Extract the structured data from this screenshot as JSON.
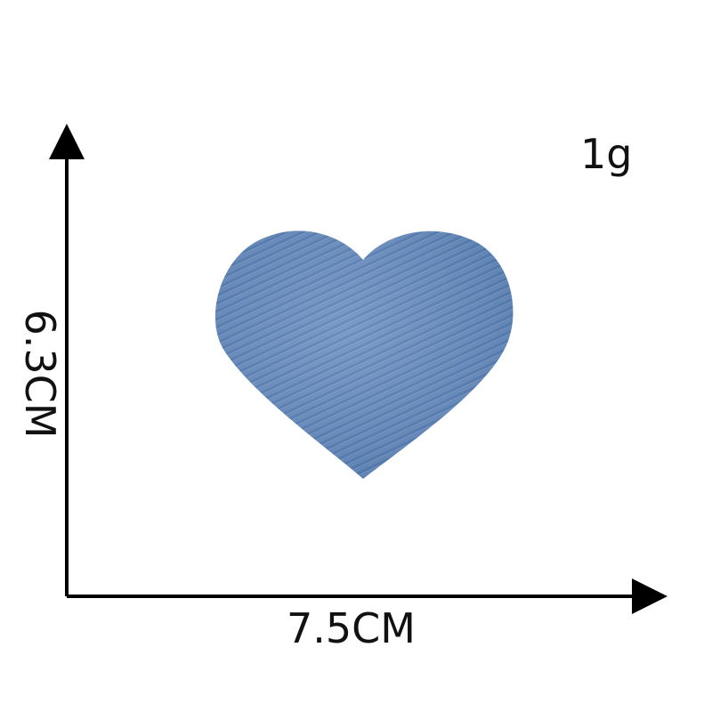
{
  "product": {
    "weight": "1g",
    "width_dimension": "7.5CM",
    "height_dimension": "6.3CM",
    "shape": "heart-patch",
    "colors": {
      "denim_base": "#5f86bb",
      "denim_dark": "#4e74a8",
      "denim_light": "#8aa7d0",
      "axis": "#000000"
    }
  }
}
